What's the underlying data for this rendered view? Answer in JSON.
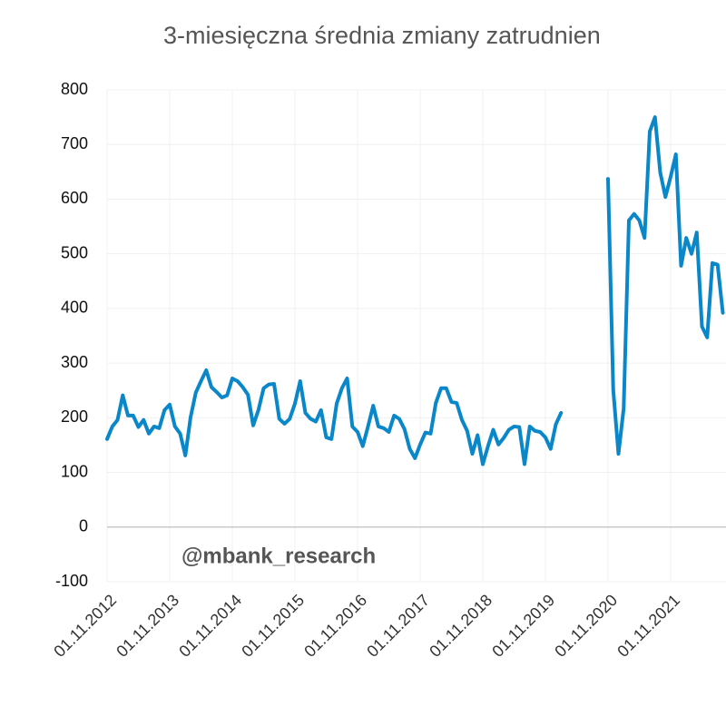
{
  "chart_data": {
    "type": "line",
    "title": "3-miesięczna średnia zmiany zatrudnien",
    "annotation": "@mbank_research",
    "categories": [
      "01.11.2012",
      null,
      null,
      null,
      null,
      null,
      null,
      null,
      null,
      null,
      null,
      null,
      "01.11.2013",
      null,
      null,
      null,
      null,
      null,
      null,
      null,
      null,
      null,
      null,
      null,
      "01.11.2014",
      null,
      null,
      null,
      null,
      null,
      null,
      null,
      null,
      null,
      null,
      null,
      "01.11.2015",
      null,
      null,
      null,
      null,
      null,
      null,
      null,
      null,
      null,
      null,
      null,
      "01.11.2016",
      null,
      null,
      null,
      null,
      null,
      null,
      null,
      null,
      null,
      null,
      null,
      "01.11.2017",
      null,
      null,
      null,
      null,
      null,
      null,
      null,
      null,
      null,
      null,
      null,
      "01.11.2018",
      null,
      null,
      null,
      null,
      null,
      null,
      null,
      null,
      null,
      null,
      null,
      "01.11.2019",
      null,
      null,
      null,
      null,
      null,
      null,
      null,
      null,
      null,
      null,
      null,
      "01.11.2020",
      null,
      null,
      null,
      null,
      null,
      null,
      null,
      null,
      null,
      null,
      null,
      "01.11.2021",
      null,
      null,
      null,
      null,
      null,
      null,
      null,
      null,
      null,
      null
    ],
    "values": [
      161,
      184,
      196,
      241,
      204,
      204,
      183,
      196,
      171,
      184,
      181,
      214,
      224,
      184,
      171,
      131,
      201,
      246,
      267,
      287,
      256,
      247,
      237,
      241,
      272,
      267,
      256,
      242,
      186,
      214,
      254,
      261,
      262,
      198,
      189,
      198,
      226,
      267,
      209,
      198,
      193,
      214,
      164,
      161,
      226,
      254,
      272,
      184,
      174,
      148,
      184,
      222,
      184,
      181,
      174,
      204,
      198,
      179,
      143,
      126,
      151,
      173,
      171,
      227,
      254,
      254,
      229,
      227,
      196,
      176,
      134,
      168,
      115,
      148,
      178,
      151,
      163,
      178,
      184,
      183,
      115,
      184,
      176,
      174,
      164,
      143,
      188,
      209,
      null,
      null,
      null,
      null,
      null,
      null,
      null,
      null,
      637,
      251,
      134,
      217,
      561,
      573,
      561,
      529,
      724,
      750,
      649,
      604,
      641,
      682,
      478,
      529,
      500,
      539,
      367,
      347,
      483,
      480,
      392
    ],
    "color": "#0a87c9",
    "ylim": [
      -100,
      800
    ],
    "yticks": [
      -100,
      0,
      100,
      200,
      300,
      400,
      500,
      600,
      700,
      800
    ],
    "grid": true
  }
}
